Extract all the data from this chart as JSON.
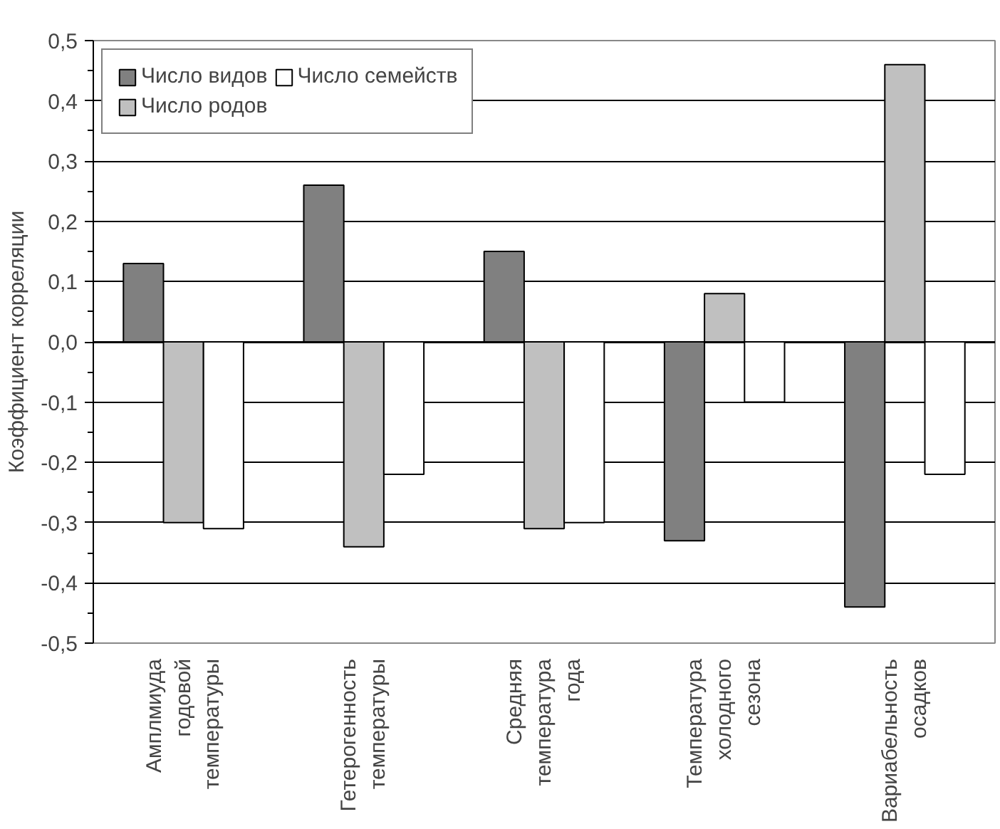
{
  "chart_data": {
    "type": "bar",
    "ylabel": "Коэффициент корреляции",
    "categories": [
      "Амплмиуда годовой температуры",
      "Гетерогенность температуры",
      "Средняя температура года",
      "Температура холодного сезона",
      "Вариабельность осадков"
    ],
    "series": [
      {
        "name": "Число видов",
        "color": "#808080",
        "values": [
          0.13,
          0.26,
          0.15,
          -0.33,
          -0.44
        ]
      },
      {
        "name": "Число родов",
        "color": "#c0c0c0",
        "values": [
          -0.3,
          -0.34,
          -0.31,
          0.08,
          0.46
        ]
      },
      {
        "name": "Число семейств",
        "color": "#ffffff",
        "values": [
          -0.31,
          -0.22,
          -0.3,
          -0.1,
          -0.22
        ]
      }
    ],
    "ylim": [
      -0.5,
      0.5
    ],
    "yticks": [
      {
        "value": -0.5,
        "label": "-0,5"
      },
      {
        "value": -0.4,
        "label": "-0,4"
      },
      {
        "value": -0.3,
        "label": "-0,3"
      },
      {
        "value": -0.2,
        "label": "-0,2"
      },
      {
        "value": -0.1,
        "label": "-0,1"
      },
      {
        "value": 0,
        "label": "0,0"
      },
      {
        "value": 0.1,
        "label": "0,1"
      },
      {
        "value": 0.2,
        "label": "0,2"
      },
      {
        "value": 0.3,
        "label": "0,3"
      },
      {
        "value": 0.4,
        "label": "0,4"
      },
      {
        "value": 0.5,
        "label": "0,5"
      }
    ],
    "grid": "y",
    "legend": "top left"
  }
}
